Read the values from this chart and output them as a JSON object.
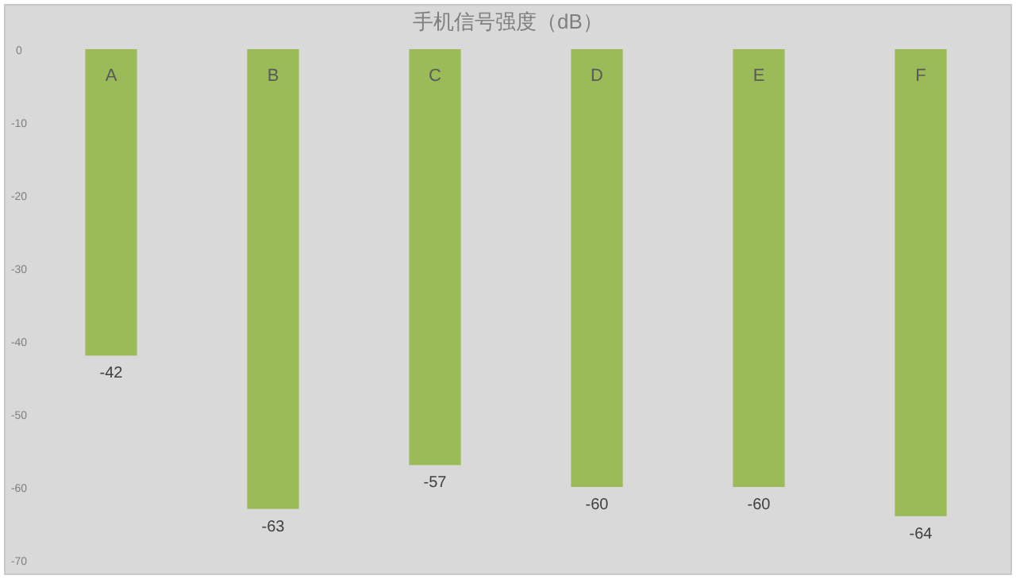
{
  "chart_data": {
    "type": "bar",
    "title": "手机信号强度（dB）",
    "categories": [
      "A",
      "B",
      "C",
      "D",
      "E",
      "F"
    ],
    "values": [
      -42,
      -63,
      -57,
      -60,
      -60,
      -64
    ],
    "color": "#9bbb59",
    "ylim": [
      -70,
      0
    ],
    "yticks": [
      0,
      -10,
      -20,
      -30,
      -40,
      -50,
      -60,
      -70
    ],
    "grid": false,
    "data_labels": true
  }
}
